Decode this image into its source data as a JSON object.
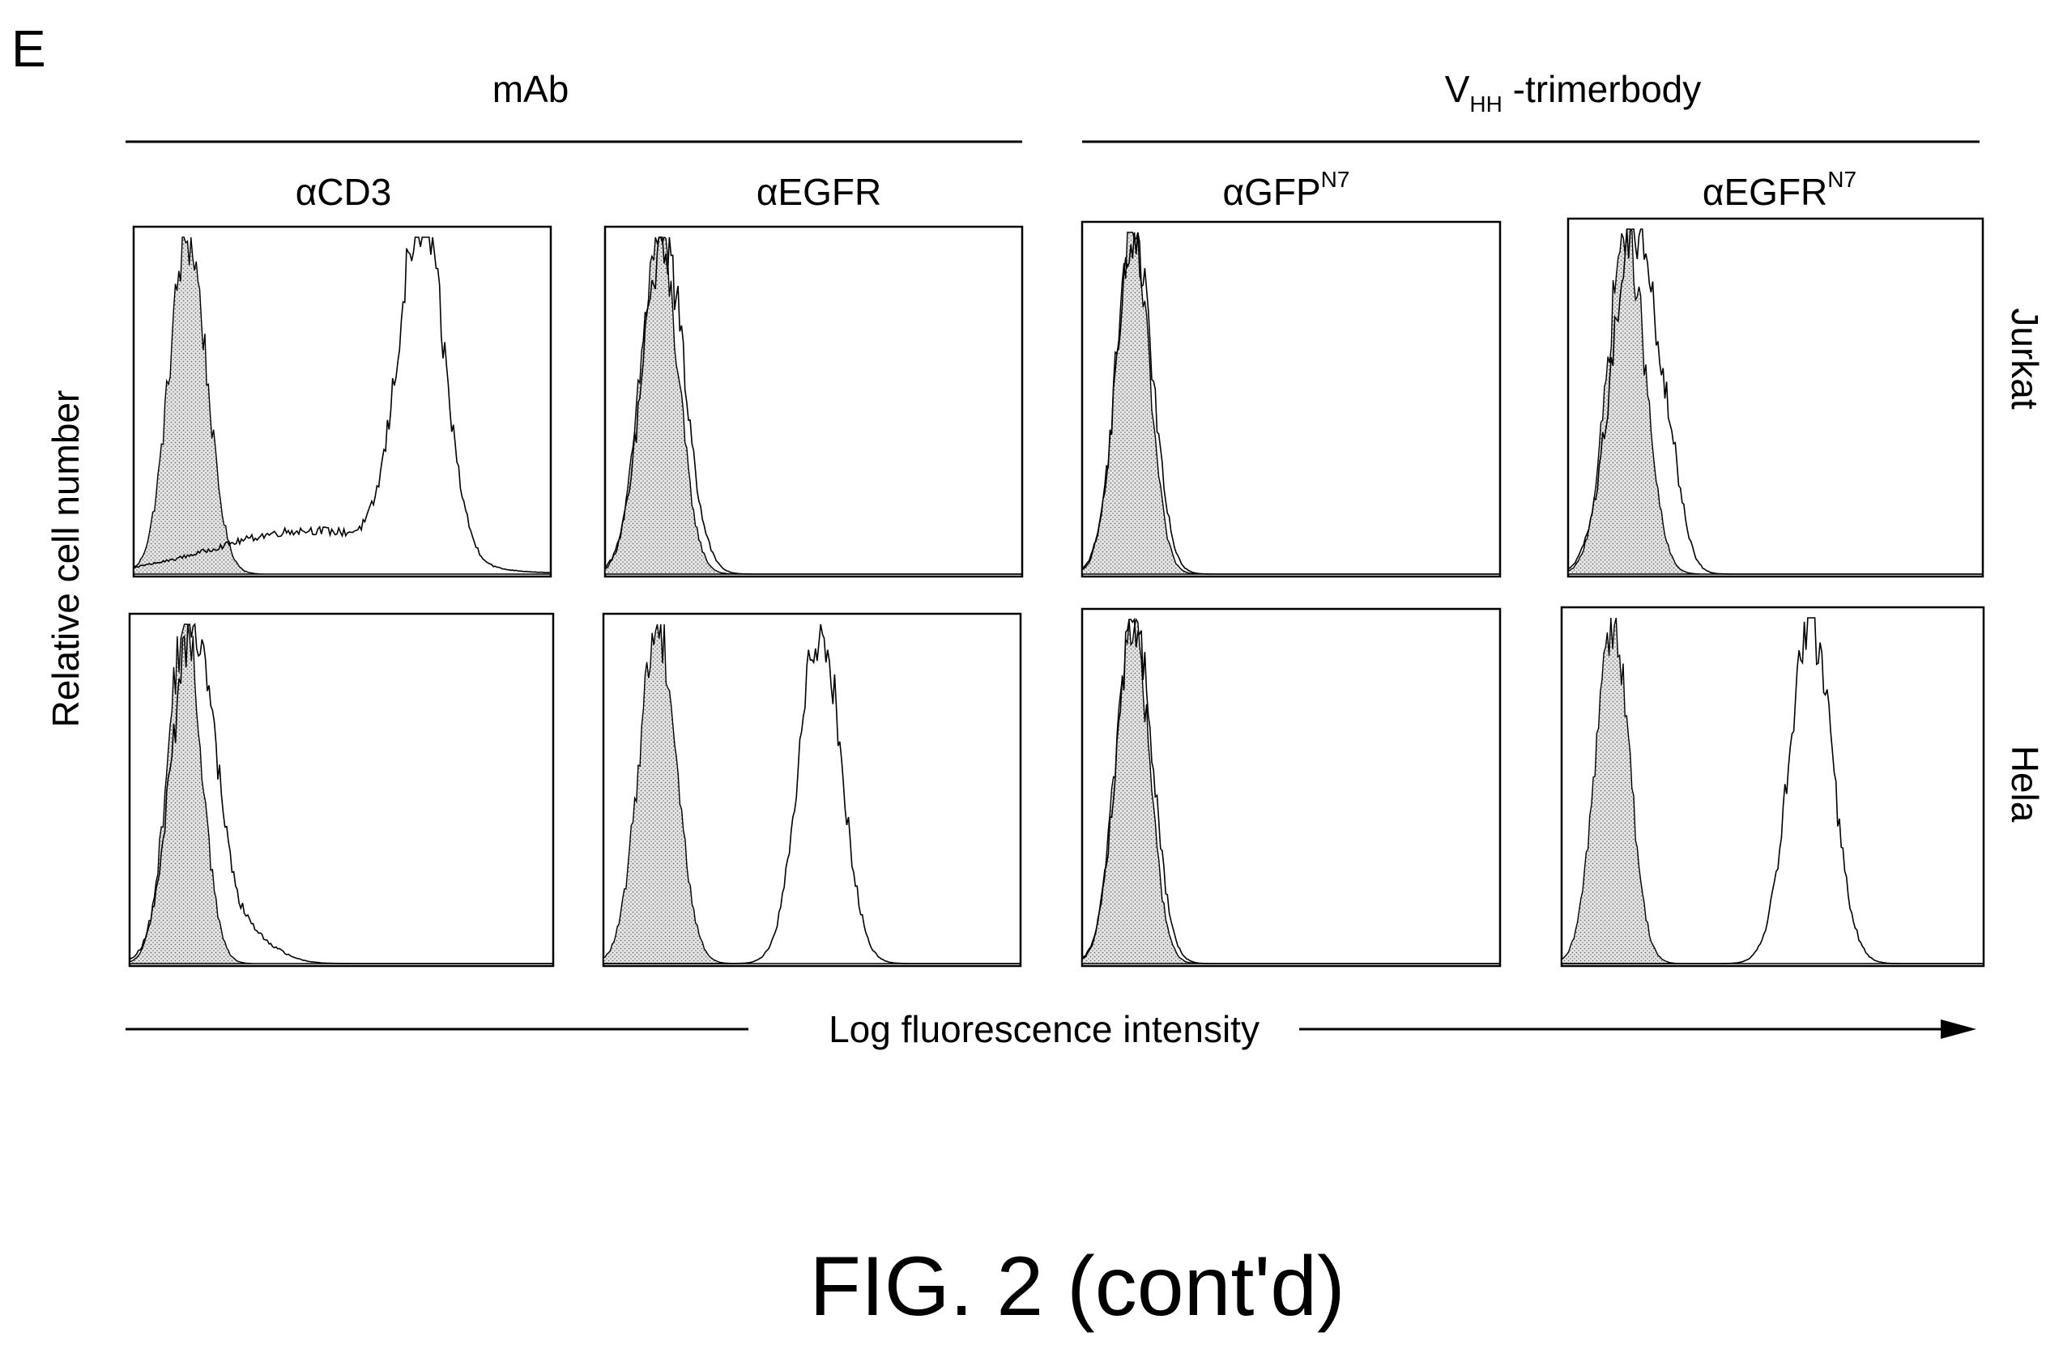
{
  "panel_letter": "E",
  "groups": [
    {
      "label": "mAb"
    },
    {
      "label_main": "V",
      "label_sub": "HH",
      "label_rest": " -trimerbody"
    }
  ],
  "columns": [
    {
      "prefix": "α",
      "name": "CD3",
      "sup": ""
    },
    {
      "prefix": "α",
      "name": "EGFR",
      "sup": ""
    },
    {
      "prefix": "α",
      "name": "GFP",
      "sup": "N7"
    },
    {
      "prefix": "α",
      "name": "EGFR",
      "sup": "N7"
    }
  ],
  "rows": [
    "Jurkat",
    "Hela"
  ],
  "y_axis_label": "Relative cell number",
  "x_axis_label": "Log fluorescence intensity",
  "figure_caption": "FIG. 2 (cont'd)",
  "colors": {
    "ink": "#000000",
    "fill": "#c8c8c8"
  },
  "chart_data": {
    "type": "area",
    "xlabel": "Log fluorescence intensity",
    "ylabel": "Relative cell number",
    "xlim": [
      0,
      1
    ],
    "ylim": [
      0,
      1
    ],
    "grid": false,
    "panels": [
      {
        "row": "Jurkat",
        "column": "αCD3",
        "control": {
          "mu": 0.13,
          "sigma": 0.045
        },
        "stained": [
          {
            "mu": 0.69,
            "sigma": 0.055,
            "w": 1.0
          },
          {
            "mu": 0.42,
            "sigma": 0.22,
            "w": 0.13
          }
        ]
      },
      {
        "row": "Jurkat",
        "column": "αEGFR",
        "control": {
          "mu": 0.13,
          "sigma": 0.045
        },
        "stained": [
          {
            "mu": 0.14,
            "sigma": 0.05,
            "w": 1.0
          }
        ]
      },
      {
        "row": "Jurkat",
        "column": "αGFPN7",
        "control": {
          "mu": 0.12,
          "sigma": 0.04
        },
        "stained": [
          {
            "mu": 0.125,
            "sigma": 0.043,
            "w": 1.0
          }
        ]
      },
      {
        "row": "Jurkat",
        "column": "αEGFRN7",
        "control": {
          "mu": 0.14,
          "sigma": 0.045
        },
        "stained": [
          {
            "mu": 0.16,
            "sigma": 0.055,
            "w": 1.0
          },
          {
            "mu": 0.25,
            "sigma": 0.03,
            "w": 0.15
          }
        ]
      },
      {
        "row": "Hela",
        "column": "αCD3",
        "control": {
          "mu": 0.13,
          "sigma": 0.04
        },
        "stained": [
          {
            "mu": 0.15,
            "sigma": 0.05,
            "w": 1.0
          },
          {
            "mu": 0.26,
            "sigma": 0.07,
            "w": 0.1
          }
        ]
      },
      {
        "row": "Hela",
        "column": "αEGFR",
        "control": {
          "mu": 0.13,
          "sigma": 0.045
        },
        "stained": [
          {
            "mu": 0.52,
            "sigma": 0.05,
            "w": 1.0
          }
        ]
      },
      {
        "row": "Hela",
        "column": "αGFPN7",
        "control": {
          "mu": 0.12,
          "sigma": 0.04
        },
        "stained": [
          {
            "mu": 0.125,
            "sigma": 0.043,
            "w": 1.0
          }
        ]
      },
      {
        "row": "Hela",
        "column": "αEGFRN7",
        "control": {
          "mu": 0.12,
          "sigma": 0.04
        },
        "stained": [
          {
            "mu": 0.59,
            "sigma": 0.05,
            "w": 1.0
          }
        ]
      }
    ]
  }
}
